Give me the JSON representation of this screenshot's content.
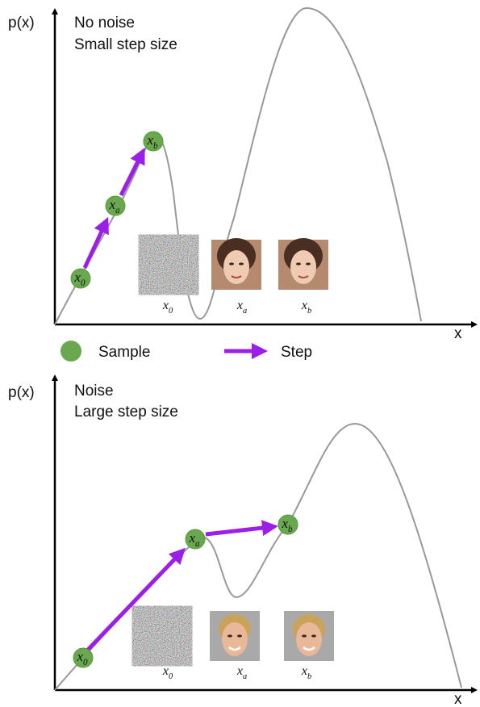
{
  "panels": [
    {
      "y_axis_label": "p(x)",
      "x_axis_label": "x",
      "title_lines": [
        "No noise",
        "Small step size"
      ],
      "samples": [
        {
          "base": "x",
          "subscript": "0"
        },
        {
          "base": "x",
          "subscript": "a"
        },
        {
          "base": "x",
          "subscript": "b"
        }
      ],
      "captions": [
        {
          "base": "x",
          "subscript": "0"
        },
        {
          "base": "x",
          "subscript": "a"
        },
        {
          "base": "x",
          "subscript": "b"
        }
      ]
    },
    {
      "y_axis_label": "p(x)",
      "x_axis_label": "x",
      "title_lines": [
        "Noise",
        "Large step size"
      ],
      "samples": [
        {
          "base": "x",
          "subscript": "0"
        },
        {
          "base": "x",
          "subscript": "a"
        },
        {
          "base": "x",
          "subscript": "b"
        }
      ],
      "captions": [
        {
          "base": "x",
          "subscript": "0"
        },
        {
          "base": "x",
          "subscript": "a"
        },
        {
          "base": "x",
          "subscript": "b"
        }
      ]
    }
  ],
  "legend": {
    "sample": "Sample",
    "step": "Step"
  }
}
